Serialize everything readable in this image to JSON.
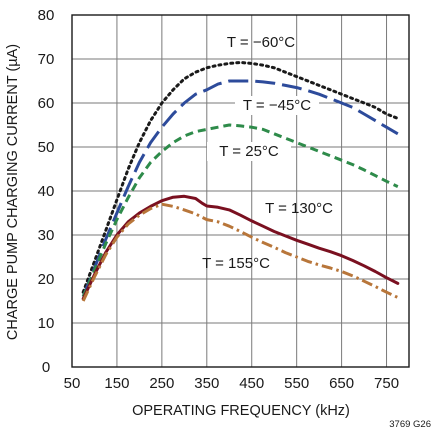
{
  "chart_data": {
    "type": "line",
    "xlabel": "OPERATING FREQUENCY (kHz)",
    "ylabel": "CHARGE PUMP CHARGING CURRENT (µA)",
    "xlim": [
      50,
      800
    ],
    "ylim": [
      0,
      80
    ],
    "xticks": [
      50,
      150,
      250,
      350,
      450,
      550,
      650,
      750
    ],
    "yticks": [
      0,
      10,
      20,
      30,
      40,
      50,
      60,
      70,
      80
    ],
    "grid": true,
    "figure_code": "3769 G26",
    "series": [
      {
        "name": "T = −60°C",
        "label": "T = −60°C",
        "color": "#1a1a1a",
        "style": "dotted",
        "points": [
          [
            75,
            17
          ],
          [
            100,
            24
          ],
          [
            125,
            31
          ],
          [
            150,
            38
          ],
          [
            175,
            45
          ],
          [
            200,
            51
          ],
          [
            225,
            56
          ],
          [
            250,
            60
          ],
          [
            275,
            63
          ],
          [
            300,
            65.5
          ],
          [
            325,
            67
          ],
          [
            350,
            68
          ],
          [
            375,
            68.6
          ],
          [
            400,
            69
          ],
          [
            425,
            69.2
          ],
          [
            450,
            69
          ],
          [
            475,
            68.6
          ],
          [
            500,
            68
          ],
          [
            525,
            67
          ],
          [
            550,
            66
          ],
          [
            575,
            65
          ],
          [
            600,
            64
          ],
          [
            625,
            63
          ],
          [
            650,
            62
          ],
          [
            675,
            61
          ],
          [
            700,
            60
          ],
          [
            725,
            59
          ],
          [
            750,
            57.5
          ],
          [
            775,
            56.5
          ]
        ]
      },
      {
        "name": "T = −45°C",
        "label": "T = −45°C",
        "color": "#2d4b9b",
        "style": "long-dash",
        "points": [
          [
            75,
            16
          ],
          [
            100,
            22.5
          ],
          [
            125,
            29
          ],
          [
            150,
            35
          ],
          [
            175,
            41
          ],
          [
            200,
            46.5
          ],
          [
            225,
            51
          ],
          [
            250,
            54.5
          ],
          [
            275,
            57.5
          ],
          [
            300,
            60
          ],
          [
            325,
            62
          ],
          [
            350,
            63
          ],
          [
            375,
            64.3
          ],
          [
            400,
            65
          ],
          [
            425,
            65
          ],
          [
            450,
            65
          ],
          [
            475,
            64.8
          ],
          [
            500,
            64.5
          ],
          [
            525,
            64
          ],
          [
            550,
            63.5
          ],
          [
            575,
            62.8
          ],
          [
            600,
            62
          ],
          [
            625,
            61
          ],
          [
            650,
            60
          ],
          [
            675,
            59
          ],
          [
            700,
            57.5
          ],
          [
            725,
            56
          ],
          [
            750,
            54.5
          ],
          [
            775,
            53
          ]
        ]
      },
      {
        "name": "T = 25°C",
        "label": "T = 25°C",
        "color": "#2e8b4a",
        "style": "dash",
        "points": [
          [
            75,
            16
          ],
          [
            100,
            22
          ],
          [
            125,
            28
          ],
          [
            150,
            33.5
          ],
          [
            175,
            38.5
          ],
          [
            200,
            43
          ],
          [
            225,
            46.5
          ],
          [
            250,
            49
          ],
          [
            275,
            51
          ],
          [
            300,
            52.5
          ],
          [
            325,
            53.5
          ],
          [
            350,
            54
          ],
          [
            375,
            54.5
          ],
          [
            400,
            55
          ],
          [
            425,
            54.8
          ],
          [
            450,
            54.5
          ],
          [
            475,
            54
          ],
          [
            500,
            53
          ],
          [
            525,
            52
          ],
          [
            550,
            51
          ],
          [
            575,
            50
          ],
          [
            600,
            49
          ],
          [
            625,
            48
          ],
          [
            650,
            47
          ],
          [
            675,
            46
          ],
          [
            700,
            44.8
          ],
          [
            725,
            43.5
          ],
          [
            750,
            42.2
          ],
          [
            775,
            41
          ]
        ]
      },
      {
        "name": "T = 130°C",
        "label": "T = 130°C",
        "color": "#7a1020",
        "style": "solid",
        "points": [
          [
            75,
            15.5
          ],
          [
            100,
            21
          ],
          [
            125,
            26
          ],
          [
            150,
            30
          ],
          [
            175,
            33
          ],
          [
            200,
            35
          ],
          [
            225,
            36.5
          ],
          [
            250,
            37.8
          ],
          [
            275,
            38.6
          ],
          [
            300,
            38.8
          ],
          [
            325,
            38.3
          ],
          [
            340,
            37.2
          ],
          [
            350,
            36.6
          ],
          [
            375,
            36.3
          ],
          [
            400,
            35.7
          ],
          [
            425,
            34.5
          ],
          [
            450,
            33.2
          ],
          [
            475,
            32
          ],
          [
            500,
            30.8
          ],
          [
            525,
            29.8
          ],
          [
            550,
            28.8
          ],
          [
            575,
            27.9
          ],
          [
            600,
            27
          ],
          [
            625,
            26.2
          ],
          [
            650,
            25.3
          ],
          [
            675,
            24.2
          ],
          [
            700,
            23
          ],
          [
            725,
            21.7
          ],
          [
            750,
            20.3
          ],
          [
            775,
            19
          ]
        ]
      },
      {
        "name": "T = 155°C",
        "label": "T = 155°C",
        "color": "#b8763a",
        "style": "dash-dot",
        "points": [
          [
            75,
            15
          ],
          [
            100,
            20.5
          ],
          [
            125,
            25.5
          ],
          [
            150,
            29.5
          ],
          [
            175,
            32.5
          ],
          [
            200,
            34.5
          ],
          [
            225,
            36
          ],
          [
            250,
            37
          ],
          [
            275,
            36.5
          ],
          [
            300,
            35.7
          ],
          [
            325,
            34.8
          ],
          [
            340,
            34
          ],
          [
            350,
            33.5
          ],
          [
            375,
            33
          ],
          [
            400,
            32
          ],
          [
            425,
            30.8
          ],
          [
            450,
            29.5
          ],
          [
            475,
            28.3
          ],
          [
            500,
            27.2
          ],
          [
            525,
            26
          ],
          [
            550,
            25
          ],
          [
            575,
            24
          ],
          [
            600,
            23.2
          ],
          [
            625,
            22.5
          ],
          [
            650,
            21.7
          ],
          [
            675,
            20.7
          ],
          [
            700,
            19.5
          ],
          [
            725,
            18.3
          ],
          [
            750,
            17
          ],
          [
            775,
            15.8
          ]
        ]
      }
    ]
  }
}
